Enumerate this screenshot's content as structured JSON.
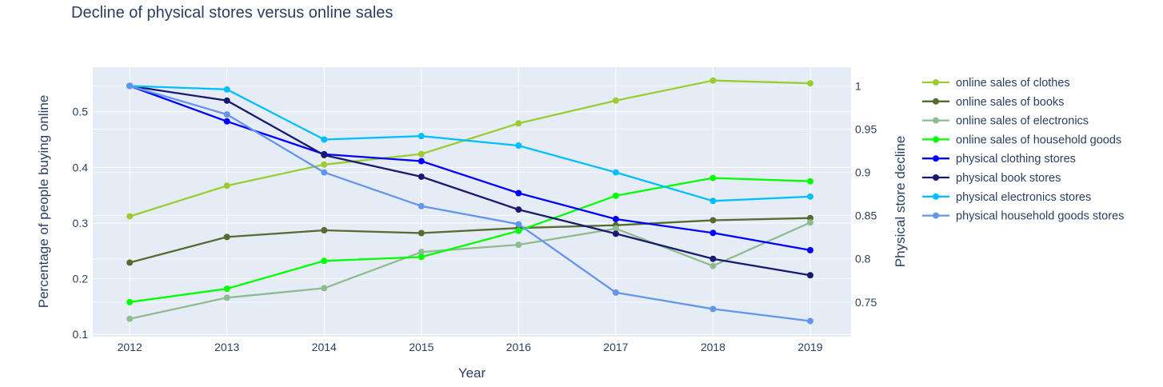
{
  "chart_data": {
    "type": "line",
    "title": "Decline of physical stores versus online sales",
    "xlabel": "Year",
    "ylabel": "Percentage of people buying online",
    "y2label": "Physical store decline",
    "x": [
      2012,
      2013,
      2014,
      2015,
      2016,
      2017,
      2018,
      2019
    ],
    "x_ticks": [
      "2012",
      "2013",
      "2014",
      "2015",
      "2016",
      "2017",
      "2018",
      "2019"
    ],
    "xlim": [
      2011.62,
      2019.42
    ],
    "ylim": [
      0.096,
      0.58
    ],
    "y_ticks": [
      0.1,
      0.2,
      0.3,
      0.4,
      0.5
    ],
    "y_tick_labels": [
      "0.1",
      "0.2",
      "0.3",
      "0.4",
      "0.5"
    ],
    "y2lim": [
      0.71,
      1.0217
    ],
    "y2_ticks": [
      0.75,
      0.8,
      0.85,
      0.9,
      0.95,
      1.0
    ],
    "y2_tick_labels": [
      "0.75",
      "0.8",
      "0.85",
      "0.9",
      "0.95",
      "1"
    ],
    "grid": true,
    "legend_position": "right",
    "series": [
      {
        "name": "online sales of clothes",
        "axis": "y",
        "color": "#9ACD32",
        "values": [
          0.312,
          0.367,
          0.405,
          0.424,
          0.479,
          0.52,
          0.556,
          0.551
        ]
      },
      {
        "name": "online sales of books",
        "axis": "y",
        "color": "#556B2F",
        "values": [
          0.229,
          0.275,
          0.287,
          0.282,
          0.291,
          0.296,
          0.305,
          0.309
        ]
      },
      {
        "name": "online sales of electronics",
        "axis": "y",
        "color": "#8FBC8F",
        "values": [
          0.128,
          0.166,
          0.183,
          0.248,
          0.261,
          0.29,
          0.223,
          0.301
        ]
      },
      {
        "name": "online sales of household goods",
        "axis": "y",
        "color": "#00FF00",
        "values": [
          0.158,
          0.182,
          0.232,
          0.239,
          0.286,
          0.349,
          0.381,
          0.375
        ]
      },
      {
        "name": "physical clothing stores",
        "axis": "y2",
        "color": "#0000FF",
        "values": [
          1.0,
          0.959,
          0.921,
          0.913,
          0.876,
          0.846,
          0.83,
          0.81
        ]
      },
      {
        "name": "physical book stores",
        "axis": "y2",
        "color": "#191970",
        "values": [
          1.0,
          0.983,
          0.92,
          0.895,
          0.857,
          0.829,
          0.8,
          0.781
        ]
      },
      {
        "name": "physical electronics stores",
        "axis": "y2",
        "color": "#00BFFF",
        "values": [
          1.0,
          0.996,
          0.938,
          0.942,
          0.931,
          0.9,
          0.867,
          0.872
        ]
      },
      {
        "name": "physical household goods stores",
        "axis": "y2",
        "color": "#6495ED",
        "values": [
          1.0,
          0.967,
          0.9,
          0.861,
          0.84,
          0.761,
          0.742,
          0.728
        ]
      }
    ]
  }
}
